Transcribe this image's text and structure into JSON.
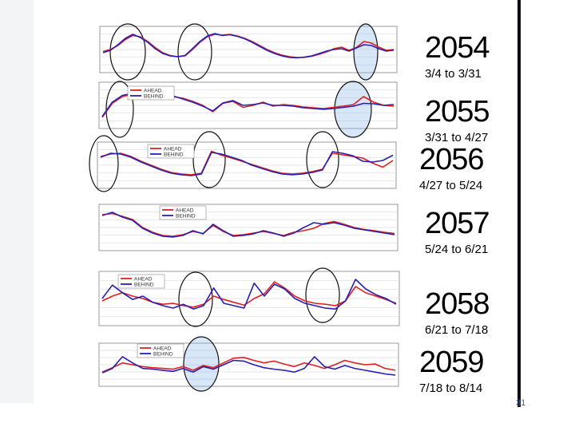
{
  "slide": {
    "page_number": "31",
    "accent_color": "#3d5fb0"
  },
  "chart_data": [
    {
      "type": "line",
      "label": "2054",
      "dates": "3/4 to 3/31",
      "legend": [],
      "series": [
        {
          "color": "#e02020",
          "values": [
            0.45,
            0.5,
            0.6,
            0.75,
            0.85,
            0.82,
            0.7,
            0.55,
            0.42,
            0.35,
            0.32,
            0.34,
            0.5,
            0.68,
            0.82,
            0.88,
            0.86,
            0.88,
            0.84,
            0.78,
            0.7,
            0.6,
            0.5,
            0.42,
            0.36,
            0.32,
            0.3,
            0.3,
            0.33,
            0.38,
            0.44,
            0.52,
            0.56,
            0.48,
            0.55,
            0.7,
            0.66,
            0.56,
            0.48,
            0.5
          ]
        },
        {
          "color": "#2a1fb0",
          "values": [
            0.42,
            0.48,
            0.62,
            0.78,
            0.88,
            0.8,
            0.68,
            0.52,
            0.4,
            0.34,
            0.32,
            0.35,
            0.52,
            0.7,
            0.84,
            0.9,
            0.85,
            0.87,
            0.83,
            0.77,
            0.68,
            0.58,
            0.48,
            0.4,
            0.34,
            0.3,
            0.29,
            0.31,
            0.34,
            0.4,
            0.46,
            0.5,
            0.52,
            0.46,
            0.54,
            0.62,
            0.6,
            0.52,
            0.46,
            0.48
          ]
        }
      ]
    },
    {
      "type": "line",
      "label": "2055",
      "dates": "3/31 to 4/27",
      "legend": [
        "AHEAD",
        "BEHIND"
      ],
      "series": [
        {
          "color": "#e02020",
          "values": [
            0.2,
            0.55,
            0.72,
            0.78,
            0.8,
            0.74,
            0.7,
            0.72,
            0.68,
            0.6,
            0.5,
            0.34,
            0.55,
            0.6,
            0.45,
            0.5,
            0.58,
            0.48,
            0.52,
            0.5,
            0.46,
            0.44,
            0.42,
            0.45,
            0.48,
            0.52,
            0.72,
            0.58,
            0.5,
            0.48
          ]
        },
        {
          "color": "#2a1fb0",
          "values": [
            0.22,
            0.58,
            0.75,
            0.8,
            0.82,
            0.76,
            0.72,
            0.74,
            0.66,
            0.58,
            0.48,
            0.36,
            0.56,
            0.62,
            0.5,
            0.52,
            0.56,
            0.5,
            0.5,
            0.48,
            0.44,
            0.42,
            0.4,
            0.42,
            0.45,
            0.48,
            0.55,
            0.54,
            0.5,
            0.52
          ]
        }
      ]
    },
    {
      "type": "line",
      "label": "2056",
      "dates": "4/27 to 5/24",
      "legend": [
        "AHEAD",
        "BEHIND"
      ],
      "series": [
        {
          "color": "#e02020",
          "values": [
            0.72,
            0.78,
            0.8,
            0.72,
            0.6,
            0.5,
            0.4,
            0.32,
            0.28,
            0.26,
            0.3,
            0.85,
            0.75,
            0.68,
            0.6,
            0.52,
            0.44,
            0.36,
            0.3,
            0.28,
            0.3,
            0.34,
            0.4,
            0.8,
            0.76,
            0.72,
            0.68,
            0.55,
            0.45,
            0.62
          ]
        },
        {
          "color": "#2a1fb0",
          "values": [
            0.7,
            0.8,
            0.78,
            0.7,
            0.58,
            0.48,
            0.38,
            0.3,
            0.26,
            0.24,
            0.28,
            0.82,
            0.78,
            0.7,
            0.62,
            0.5,
            0.42,
            0.34,
            0.28,
            0.26,
            0.28,
            0.32,
            0.38,
            0.84,
            0.8,
            0.74,
            0.6,
            0.58,
            0.62,
            0.75
          ]
        }
      ]
    },
    {
      "type": "line",
      "label": "2057",
      "dates": "5/24 to 6/21",
      "legend": [
        "AHEAD",
        "BEHIND"
      ],
      "series": [
        {
          "color": "#e02020",
          "values": [
            0.82,
            0.85,
            0.78,
            0.7,
            0.5,
            0.38,
            0.3,
            0.28,
            0.32,
            0.4,
            0.35,
            0.55,
            0.4,
            0.3,
            0.32,
            0.36,
            0.4,
            0.35,
            0.3,
            0.38,
            0.42,
            0.48,
            0.6,
            0.65,
            0.58,
            0.5,
            0.45,
            0.42,
            0.38,
            0.35
          ]
        },
        {
          "color": "#2a1fb0",
          "values": [
            0.8,
            0.88,
            0.76,
            0.68,
            0.48,
            0.36,
            0.28,
            0.26,
            0.3,
            0.42,
            0.34,
            0.58,
            0.42,
            0.28,
            0.3,
            0.34,
            0.42,
            0.36,
            0.28,
            0.36,
            0.5,
            0.62,
            0.58,
            0.62,
            0.56,
            0.48,
            0.44,
            0.4,
            0.36,
            0.32
          ]
        }
      ]
    },
    {
      "type": "line",
      "label": "2058",
      "dates": "6/21 to 7/18",
      "legend": [
        "AHEAD",
        "BEHIND"
      ],
      "series": [
        {
          "color": "#e02020",
          "values": [
            0.45,
            0.55,
            0.62,
            0.55,
            0.5,
            0.42,
            0.38,
            0.4,
            0.35,
            0.32,
            0.38,
            0.55,
            0.48,
            0.42,
            0.36,
            0.5,
            0.6,
            0.85,
            0.72,
            0.55,
            0.45,
            0.4,
            0.38,
            0.35,
            0.45,
            0.75,
            0.62,
            0.55,
            0.48,
            0.4
          ]
        },
        {
          "color": "#2a1fb0",
          "values": [
            0.5,
            0.78,
            0.62,
            0.48,
            0.55,
            0.42,
            0.35,
            0.3,
            0.38,
            0.28,
            0.35,
            0.72,
            0.4,
            0.35,
            0.3,
            0.82,
            0.55,
            0.8,
            0.7,
            0.5,
            0.4,
            0.35,
            0.3,
            0.28,
            0.45,
            0.9,
            0.7,
            0.58,
            0.5,
            0.38
          ]
        }
      ]
    },
    {
      "type": "line",
      "label": "2059",
      "dates": "7/18 to 8/14",
      "legend": [
        "AHEAD",
        "BEHIND"
      ],
      "series": [
        {
          "color": "#e02020",
          "values": [
            0.3,
            0.42,
            0.55,
            0.5,
            0.45,
            0.42,
            0.4,
            0.38,
            0.45,
            0.35,
            0.48,
            0.42,
            0.55,
            0.68,
            0.7,
            0.62,
            0.55,
            0.6,
            0.52,
            0.45,
            0.55,
            0.48,
            0.4,
            0.5,
            0.62,
            0.55,
            0.5,
            0.52,
            0.4,
            0.35
          ]
        },
        {
          "color": "#2a1fb0",
          "values": [
            0.28,
            0.4,
            0.72,
            0.55,
            0.4,
            0.38,
            0.35,
            0.32,
            0.4,
            0.3,
            0.45,
            0.38,
            0.5,
            0.62,
            0.6,
            0.5,
            0.42,
            0.38,
            0.35,
            0.3,
            0.4,
            0.72,
            0.45,
            0.38,
            0.48,
            0.4,
            0.35,
            0.3,
            0.25,
            0.22
          ]
        }
      ]
    }
  ]
}
